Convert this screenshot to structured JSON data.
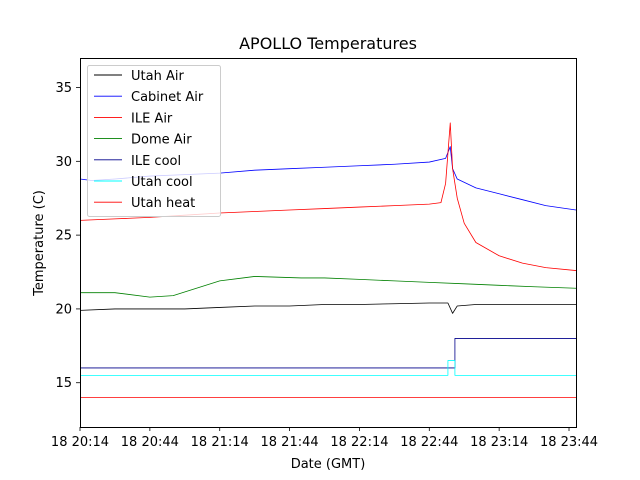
{
  "chart_data": {
    "type": "line",
    "title": "APOLLO Temperatures",
    "xlabel": "Date (GMT)",
    "ylabel": "Temperature (C)",
    "xlim": [
      0,
      213
    ],
    "ylim": [
      12,
      37
    ],
    "x_ticks": [
      {
        "label": "18 20:14",
        "value": 0
      },
      {
        "label": "18 20:44",
        "value": 30
      },
      {
        "label": "18 21:14",
        "value": 60
      },
      {
        "label": "18 21:44",
        "value": 90
      },
      {
        "label": "18 22:14",
        "value": 120
      },
      {
        "label": "18 22:44",
        "value": 150
      },
      {
        "label": "18 23:14",
        "value": 180
      },
      {
        "label": "18 23:44",
        "value": 210
      }
    ],
    "y_ticks": [
      15,
      20,
      25,
      30,
      35
    ],
    "legend_position": "top-left",
    "series": [
      {
        "name": "Utah Air",
        "color": "#000000",
        "x": [
          0,
          15,
          30,
          45,
          60,
          75,
          90,
          105,
          120,
          135,
          150,
          158,
          160,
          162,
          170,
          185,
          200,
          213
        ],
        "y": [
          19.9,
          20.0,
          20.0,
          20.0,
          20.1,
          20.2,
          20.2,
          20.3,
          20.3,
          20.35,
          20.4,
          20.4,
          19.7,
          20.2,
          20.3,
          20.3,
          20.3,
          20.3
        ]
      },
      {
        "name": "Cabinet Air",
        "color": "#0000ff",
        "x": [
          0,
          5,
          15,
          30,
          45,
          60,
          75,
          90,
          105,
          120,
          135,
          150,
          157,
          159,
          160,
          162,
          170,
          180,
          190,
          200,
          213
        ],
        "y": [
          28.8,
          28.7,
          28.8,
          29.0,
          29.1,
          29.2,
          29.4,
          29.5,
          29.6,
          29.7,
          29.8,
          29.95,
          30.2,
          31.0,
          29.5,
          28.8,
          28.2,
          27.8,
          27.4,
          27.0,
          26.7
        ]
      },
      {
        "name": "ILE Air",
        "color": "#ff0000",
        "x": [
          0,
          15,
          30,
          45,
          60,
          75,
          90,
          105,
          120,
          135,
          150,
          155,
          157,
          159,
          160,
          162,
          165,
          170,
          180,
          190,
          200,
          213
        ],
        "y": [
          26.0,
          26.1,
          26.2,
          26.35,
          26.5,
          26.6,
          26.7,
          26.8,
          26.9,
          27.0,
          27.1,
          27.2,
          28.5,
          32.6,
          29.5,
          27.5,
          25.8,
          24.5,
          23.6,
          23.1,
          22.8,
          22.6
        ]
      },
      {
        "name": "Dome Air",
        "color": "#008000",
        "x": [
          0,
          15,
          30,
          40,
          50,
          60,
          70,
          75,
          85,
          95,
          105,
          120,
          135,
          150,
          165,
          180,
          195,
          213
        ],
        "y": [
          21.1,
          21.1,
          20.8,
          20.9,
          21.4,
          21.9,
          22.1,
          22.2,
          22.15,
          22.1,
          22.1,
          22.0,
          21.9,
          21.8,
          21.7,
          21.6,
          21.5,
          21.4
        ]
      },
      {
        "name": "ILE cool",
        "color": "#00008b",
        "x": [
          0,
          161,
          161,
          213
        ],
        "y": [
          16.0,
          16.0,
          18.0,
          18.0
        ]
      },
      {
        "name": "Utah cool",
        "color": "#00ffff",
        "x": [
          0,
          158,
          158,
          161,
          161,
          213
        ],
        "y": [
          15.5,
          15.5,
          16.5,
          16.5,
          15.5,
          15.5
        ]
      },
      {
        "name": "Utah heat",
        "color": "#ff0000",
        "x": [
          0,
          213
        ],
        "y": [
          14.0,
          14.0
        ]
      }
    ]
  }
}
